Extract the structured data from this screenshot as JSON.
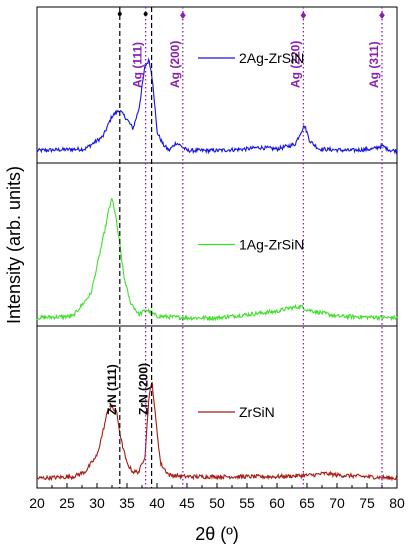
{
  "chart_data": {
    "type": "line",
    "xlabel": "2θ (º)",
    "ylabel": "Intensity (arb. units)",
    "xlim": [
      20,
      80
    ],
    "x_ticks": [
      "20",
      "25",
      "30",
      "35",
      "40",
      "45",
      "50",
      "55",
      "60",
      "65",
      "70",
      "75",
      "80"
    ],
    "grid": false,
    "panels": [
      {
        "name": "2Ag-ZrSiN",
        "color": "#1414e0",
        "legend_position": "right-middle",
        "points": [
          [
            20,
            0.08
          ],
          [
            28,
            0.09
          ],
          [
            31,
            0.17
          ],
          [
            32.5,
            0.3
          ],
          [
            33.7,
            0.34
          ],
          [
            35,
            0.28
          ],
          [
            36,
            0.22
          ],
          [
            37,
            0.35
          ],
          [
            38,
            0.62
          ],
          [
            38.7,
            0.66
          ],
          [
            39.3,
            0.52
          ],
          [
            40,
            0.2
          ],
          [
            41,
            0.12
          ],
          [
            42,
            0.08
          ],
          [
            43.2,
            0.13
          ],
          [
            44,
            0.11
          ],
          [
            45,
            0.08
          ],
          [
            50,
            0.08
          ],
          [
            55,
            0.09
          ],
          [
            57,
            0.1
          ],
          [
            60,
            0.09
          ],
          [
            63,
            0.12
          ],
          [
            64,
            0.2
          ],
          [
            64.6,
            0.24
          ],
          [
            65.5,
            0.14
          ],
          [
            67,
            0.09
          ],
          [
            72,
            0.08
          ],
          [
            76,
            0.09
          ],
          [
            77.5,
            0.11
          ],
          [
            79,
            0.08
          ],
          [
            80,
            0.08
          ]
        ]
      },
      {
        "name": "1Ag-ZrSiN",
        "color": "#3fe02a",
        "legend_position": "right-middle",
        "points": [
          [
            20,
            0.05
          ],
          [
            26,
            0.06
          ],
          [
            29,
            0.2
          ],
          [
            30.5,
            0.45
          ],
          [
            31.5,
            0.62
          ],
          [
            32,
            0.72
          ],
          [
            32.5,
            0.78
          ],
          [
            33,
            0.7
          ],
          [
            33.8,
            0.5
          ],
          [
            34.5,
            0.3
          ],
          [
            35.5,
            0.15
          ],
          [
            37,
            0.07
          ],
          [
            38.2,
            0.1
          ],
          [
            40,
            0.06
          ],
          [
            45,
            0.05
          ],
          [
            50,
            0.05
          ],
          [
            60,
            0.09
          ],
          [
            62,
            0.11
          ],
          [
            64,
            0.12
          ],
          [
            65,
            0.1
          ],
          [
            70,
            0.06
          ],
          [
            80,
            0.05
          ]
        ]
      },
      {
        "name": "ZrSiN",
        "color": "#a81a14",
        "legend_position": "right-middle",
        "points": [
          [
            20,
            0.06
          ],
          [
            26,
            0.07
          ],
          [
            28,
            0.1
          ],
          [
            30,
            0.2
          ],
          [
            31,
            0.35
          ],
          [
            31.8,
            0.48
          ],
          [
            32.5,
            0.5
          ],
          [
            33.3,
            0.46
          ],
          [
            34,
            0.3
          ],
          [
            35,
            0.15
          ],
          [
            36,
            0.1
          ],
          [
            37,
            0.1
          ],
          [
            38,
            0.2
          ],
          [
            38.7,
            0.58
          ],
          [
            39.2,
            0.65
          ],
          [
            39.8,
            0.42
          ],
          [
            40.6,
            0.15
          ],
          [
            42,
            0.08
          ],
          [
            45,
            0.07
          ],
          [
            50,
            0.07
          ],
          [
            55,
            0.07
          ],
          [
            60,
            0.07
          ],
          [
            66,
            0.08
          ],
          [
            68,
            0.09
          ],
          [
            70,
            0.08
          ],
          [
            75,
            0.07
          ],
          [
            80,
            0.06
          ]
        ]
      }
    ],
    "reference_lines": [
      {
        "label": "ZrN (111)",
        "x": 33.8,
        "style": "dashed",
        "color": "#000000"
      },
      {
        "label": "ZrN (200)",
        "x": 39.1,
        "style": "dashed",
        "color": "#000000"
      },
      {
        "label": "Ag (111)",
        "x": 38.1,
        "style": "dotted",
        "color": "#8a1fb0"
      },
      {
        "label": "Ag (200)",
        "x": 44.3,
        "style": "dotted",
        "color": "#8a1fb0"
      },
      {
        "label": "Ag (220)",
        "x": 64.4,
        "style": "dotted",
        "color": "#8a1fb0"
      },
      {
        "label": "Ag (311)",
        "x": 77.5,
        "style": "dotted",
        "color": "#8a1fb0"
      }
    ],
    "markers": [
      {
        "symbol": "•",
        "x": 33.8
      },
      {
        "symbol": "•",
        "x": 38.1
      },
      {
        "symbol": "♦",
        "x": 44.3
      },
      {
        "symbol": "♦",
        "x": 64.4
      },
      {
        "symbol": "♦",
        "x": 77.5
      }
    ]
  }
}
